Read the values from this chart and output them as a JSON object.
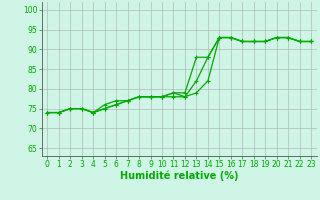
{
  "background_color": "#cff5e7",
  "grid_color": "#aaaaaa",
  "line_color": "#00aa00",
  "xlabel": "Humidité relative (%)",
  "ylabel_ticks": [
    65,
    70,
    75,
    80,
    85,
    90,
    95,
    100
  ],
  "xlim": [
    -0.5,
    23.5
  ],
  "ylim": [
    63,
    102
  ],
  "xticks": [
    0,
    1,
    2,
    3,
    4,
    5,
    6,
    7,
    8,
    9,
    10,
    11,
    12,
    13,
    14,
    15,
    16,
    17,
    18,
    19,
    20,
    21,
    22,
    23
  ],
  "series1": [
    74,
    74,
    75,
    75,
    74,
    75,
    76,
    77,
    78,
    78,
    78,
    79,
    79,
    88,
    88,
    93,
    93,
    92,
    92,
    92,
    93,
    93,
    92,
    92
  ],
  "series2": [
    74,
    74,
    75,
    75,
    74,
    76,
    77,
    77,
    78,
    78,
    78,
    79,
    78,
    79,
    82,
    93,
    93,
    92,
    92,
    92,
    93,
    93,
    92,
    92
  ],
  "series3": [
    74,
    74,
    75,
    75,
    74,
    75,
    76,
    77,
    78,
    78,
    78,
    78,
    78,
    82,
    88,
    93,
    93,
    92,
    92,
    92,
    93,
    93,
    92,
    92
  ],
  "marker": "+",
  "marker_size": 3.5,
  "linewidth": 0.9,
  "tick_fontsize": 5.5,
  "xlabel_fontsize": 7,
  "xlabel_fontweight": "bold",
  "tick_color": "#00aa00",
  "xlabel_color": "#00aa00",
  "spine_color": "#555555"
}
